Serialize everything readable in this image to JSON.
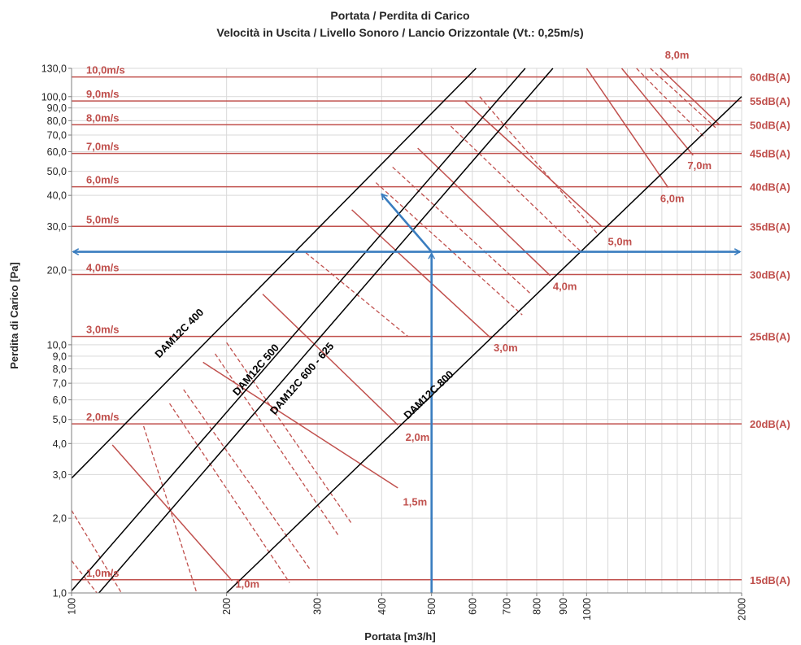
{
  "chart_data": {
    "type": "line",
    "title": "Portata / Perdita di Carico",
    "subtitle": "Velocità in Uscita / Livello Sonoro / Lancio Orizzontale (Vt.: 0,25m/s)",
    "xlabel": "Portata [m3/h]",
    "ylabel": "Perdita di Carico [Pa]",
    "x_scale": "log",
    "y_scale": "log",
    "xlim": [
      100,
      2000
    ],
    "ylim": [
      1,
      130
    ],
    "grid": true,
    "x_ticks": [
      {
        "value": 100,
        "label": "100"
      },
      {
        "value": 200,
        "label": "200"
      },
      {
        "value": 300,
        "label": "300"
      },
      {
        "value": 400,
        "label": "400"
      },
      {
        "value": 500,
        "label": "500"
      },
      {
        "value": 600,
        "label": "600"
      },
      {
        "value": 700,
        "label": "700"
      },
      {
        "value": 800,
        "label": "800"
      },
      {
        "value": 900,
        "label": "900"
      },
      {
        "value": 1000,
        "label": "1000"
      },
      {
        "value": 2000,
        "label": "2000"
      }
    ],
    "y_ticks": [
      {
        "value": 1,
        "label": "1,0"
      },
      {
        "value": 2,
        "label": "2,0"
      },
      {
        "value": 3,
        "label": "3,0"
      },
      {
        "value": 4,
        "label": "4,0"
      },
      {
        "value": 5,
        "label": "5,0"
      },
      {
        "value": 6,
        "label": "6,0"
      },
      {
        "value": 7,
        "label": "7,0"
      },
      {
        "value": 8,
        "label": "8,0"
      },
      {
        "value": 9,
        "label": "9,0"
      },
      {
        "value": 10,
        "label": "10,0"
      },
      {
        "value": 20,
        "label": "20,0"
      },
      {
        "value": 30,
        "label": "30,0"
      },
      {
        "value": 40,
        "label": "40,0"
      },
      {
        "value": 50,
        "label": "50,0"
      },
      {
        "value": 60,
        "label": "60,0"
      },
      {
        "value": 70,
        "label": "70,0"
      },
      {
        "value": 80,
        "label": "80,0"
      },
      {
        "value": 90,
        "label": "90,0"
      },
      {
        "value": 100,
        "label": "100,0"
      },
      {
        "value": 130,
        "label": "130,0"
      }
    ],
    "series": [
      {
        "name": "DAM12C 400",
        "points": [
          [
            100,
            2.9
          ],
          [
            610,
            130
          ]
        ]
      },
      {
        "name": "DAM12C 500",
        "points": [
          [
            100,
            1.02
          ],
          [
            760,
            130
          ]
        ]
      },
      {
        "name": "DAM12C 600 - 625",
        "points": [
          [
            113,
            1.0
          ],
          [
            860,
            130
          ]
        ]
      },
      {
        "name": "DAM12C 800",
        "points": [
          [
            200,
            1.0
          ],
          [
            2000,
            100
          ]
        ]
      }
    ],
    "velocity_lines": [
      {
        "label": "1,0m/s",
        "y": 1.13
      },
      {
        "label": "2,0m/s",
        "y": 4.8
      },
      {
        "label": "3,0m/s",
        "y": 10.8
      },
      {
        "label": "4,0m/s",
        "y": 19.2
      },
      {
        "label": "5,0m/s",
        "y": 30
      },
      {
        "label": "6,0m/s",
        "y": 43.3
      },
      {
        "label": "7,0m/s",
        "y": 59
      },
      {
        "label": "8,0m/s",
        "y": 77
      },
      {
        "label": "9,0m/s",
        "y": 96
      },
      {
        "label": "10,0m/s",
        "y": 120
      }
    ],
    "sound_levels": [
      {
        "label": "15dB(A)",
        "y": 1.13
      },
      {
        "label": "20dB(A)",
        "y": 4.8
      },
      {
        "label": "25dB(A)",
        "y": 10.8
      },
      {
        "label": "30dB(A)",
        "y": 19.2
      },
      {
        "label": "35dB(A)",
        "y": 30
      },
      {
        "label": "40dB(A)",
        "y": 43.3
      },
      {
        "label": "45dB(A)",
        "y": 59
      },
      {
        "label": "50dB(A)",
        "y": 77
      },
      {
        "label": "55dB(A)",
        "y": 96
      },
      {
        "label": "60dB(A)",
        "y": 120
      }
    ],
    "throw_lines": [
      {
        "label": "1,0m",
        "from": [
          120,
          3.95
        ],
        "to": [
          205,
          1.12
        ],
        "label_at": [
          208,
          1.05
        ]
      },
      {
        "label": "1,5m",
        "from": [
          180,
          8.5
        ],
        "to": [
          430,
          2.65
        ],
        "label_at": [
          440,
          2.25
        ]
      },
      {
        "label": "2,0m",
        "from": [
          235,
          16
        ],
        "to": [
          430,
          4.75
        ],
        "label_at": [
          445,
          4.1
        ]
      },
      {
        "label": "3,0m",
        "from": [
          350,
          35
        ],
        "to": [
          650,
          10.7
        ],
        "label_at": [
          660,
          9.4
        ]
      },
      {
        "label": "4,0m",
        "from": [
          470,
          62
        ],
        "to": [
          850,
          19
        ],
        "label_at": [
          860,
          16.6
        ]
      },
      {
        "label": "5,0m",
        "from": [
          580,
          96
        ],
        "to": [
          1070,
          30
        ],
        "label_at": [
          1100,
          25.2
        ]
      },
      {
        "label": "6,0m",
        "from": [
          1000,
          130
        ],
        "to": [
          1440,
          43
        ],
        "label_at": [
          1390,
          37.5
        ]
      },
      {
        "label": "7,0m",
        "from": [
          1170,
          130
        ],
        "to": [
          1610,
          58
        ],
        "label_at": [
          1570,
          51
        ]
      },
      {
        "label": "8,0m",
        "from": [
          1390,
          130
        ],
        "to": [
          1810,
          77
        ],
        "label_at": [
          1420,
          150
        ]
      }
    ],
    "dashed_throw_lines": [
      {
        "from": [
          100,
          2.15
        ],
        "to": [
          125,
          1.0
        ]
      },
      {
        "from": [
          100,
          1.35
        ],
        "to": [
          112,
          1.0
        ]
      },
      {
        "from": [
          138,
          4.7
        ],
        "to": [
          175,
          1.0
        ]
      },
      {
        "from": [
          155,
          5.8
        ],
        "to": [
          265,
          1.1
        ]
      },
      {
        "from": [
          165,
          6.6
        ],
        "to": [
          290,
          1.25
        ]
      },
      {
        "from": [
          190,
          9.2
        ],
        "to": [
          330,
          1.7
        ]
      },
      {
        "from": [
          200,
          10.2
        ],
        "to": [
          350,
          1.9
        ]
      },
      {
        "from": [
          285,
          23.5
        ],
        "to": [
          450,
          10.8
        ]
      },
      {
        "from": [
          390,
          45
        ],
        "to": [
          750,
          13.2
        ]
      },
      {
        "from": [
          420,
          52
        ],
        "to": [
          780,
          16
        ]
      },
      {
        "from": [
          545,
          76
        ],
        "to": [
          980,
          23.5
        ]
      },
      {
        "from": [
          620,
          100
        ],
        "to": [
          1050,
          28
        ]
      },
      {
        "from": [
          1250,
          130
        ],
        "to": [
          1700,
          68
        ]
      },
      {
        "from": [
          1330,
          130
        ],
        "to": [
          1780,
          75
        ]
      }
    ],
    "example": {
      "flow": 500,
      "pressure_drop": 23.7,
      "throw_arrow_to": [
        400,
        40.5
      ],
      "color": "#3a7dbf"
    },
    "colors": {
      "red": "#c0504d",
      "model_lines": "#000000",
      "grid": "#d9d9d9",
      "example": "#3a7dbf"
    }
  }
}
